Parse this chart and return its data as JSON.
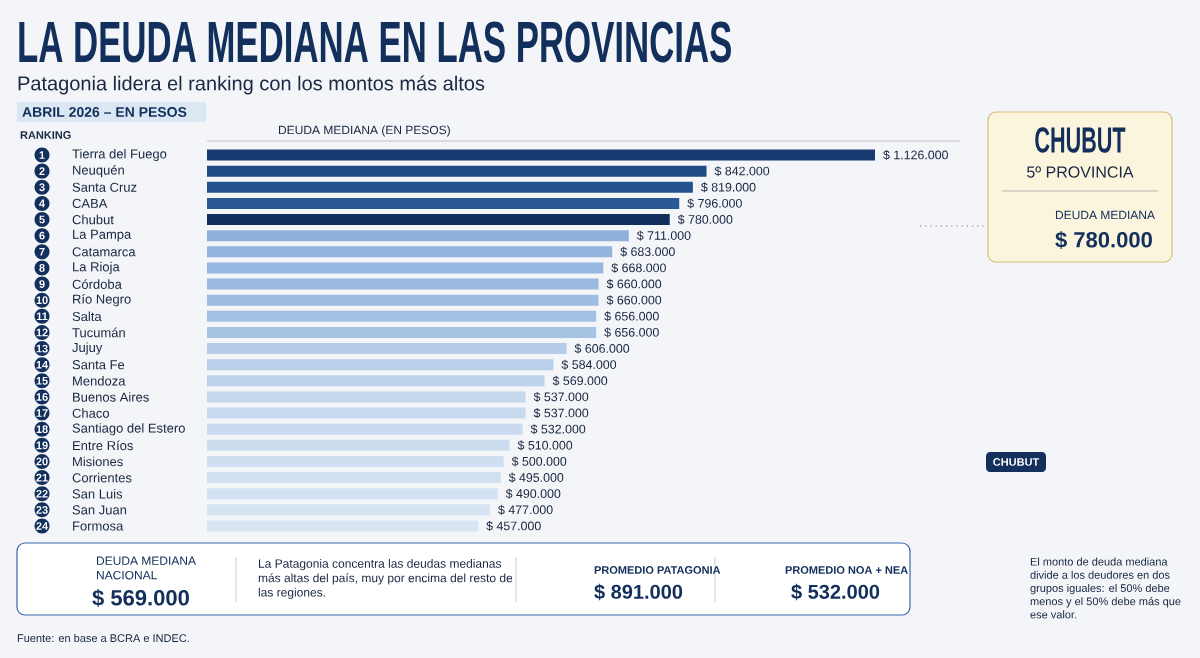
{
  "chart_data": {
    "type": "bar",
    "orientation": "horizontal",
    "title": "LA DEUDA MEDIANA EN LAS PROVINCIAS",
    "subtitle": "Patagonia lidera el ranking con los montos más altos",
    "categories": [
      "Tierra del Fuego",
      "Neuquén",
      "Santa Cruz",
      "CABA",
      "Chubut",
      "La Pampa",
      "Catamarca",
      "La Rioja",
      "Córdoba",
      "Río Negro",
      "Salta",
      "Tucumán",
      "Jujuy",
      "Santa Fe",
      "Mendoza",
      "Buenos Aires",
      "Chaco",
      "Santiago del Estero",
      "Entre Ríos",
      "Misiones",
      "Corrientes",
      "San Luis",
      "San Juan",
      "Formosa"
    ],
    "values": [
      1126000,
      842000,
      819000,
      796000,
      780000,
      711000,
      683000,
      668000,
      660000,
      660000,
      656000,
      656000,
      606000,
      584000,
      569000,
      537000,
      537000,
      532000,
      510000,
      500000,
      495000,
      490000,
      477000,
      457000
    ],
    "value_labels": [
      "$ 1.126.000",
      "$ 842.000",
      "$ 819.000",
      "$ 796.000",
      "$ 780.000",
      "$ 711.000",
      "$ 683.000",
      "$ 668.000",
      "$ 660.000",
      "$ 660.000",
      "$ 656.000",
      "$ 656.000",
      "$ 606.000",
      "$ 584.000",
      "$ 569.000",
      "$ 537.000",
      "$ 537.000",
      "$ 532.000",
      "$ 510.000",
      "$ 500.000",
      "$ 495.000",
      "$ 490.000",
      "$ 477.000",
      "$ 457.000"
    ],
    "colors": [
      "#173a70",
      "#1f4a86",
      "#24528f",
      "#2a5996",
      "#102f5e",
      "#8eb1dc",
      "#92b4dd",
      "#96b7df",
      "#9abae0",
      "#9ebde1",
      "#a2c0e2",
      "#a6c3e4",
      "#b6cde9",
      "#b9d0ea",
      "#bcd2eb",
      "#c6d8ee",
      "#c8daef",
      "#cadbef",
      "#ccddf0",
      "#cfdff1",
      "#d1e0f1",
      "#d3e2f2",
      "#d6e4f3",
      "#d8e5f3"
    ],
    "annotations": [
      "ABRIL 2026 – EN PESOS",
      "RANKING",
      "CHUBUT",
      "5º PROVINCIA",
      "DEUDA MEDIANA",
      "$ 780.000",
      "DEUDA MEDIANA NACIONAL",
      "$ 569.000",
      "La Patagonia concentra las deudas medianas más altas del país, muy por encima del resto de las regiones.",
      "PROMEDIO PATAGONIA",
      "$ 891.000",
      "PROMEDIO NOA + NEA",
      "$ 532.000",
      "El monto de deuda mediana divide a los deudores en dos grupos iguales: el 50% debe menos y el 50% debe más que ese valor.",
      "CHUBUT",
      "Fuente: en base a BCRA e INDEC.",
      "1",
      "2",
      "3",
      "4",
      "5",
      "6",
      "7",
      "8",
      "9",
      "10",
      "11",
      "12",
      "13",
      "14",
      "15",
      "16",
      "17",
      "18",
      "19",
      "20",
      "21",
      "22",
      "23",
      "24",
      "DEUDA MEDIANA (EN PESOS)"
    ]
  }
}
